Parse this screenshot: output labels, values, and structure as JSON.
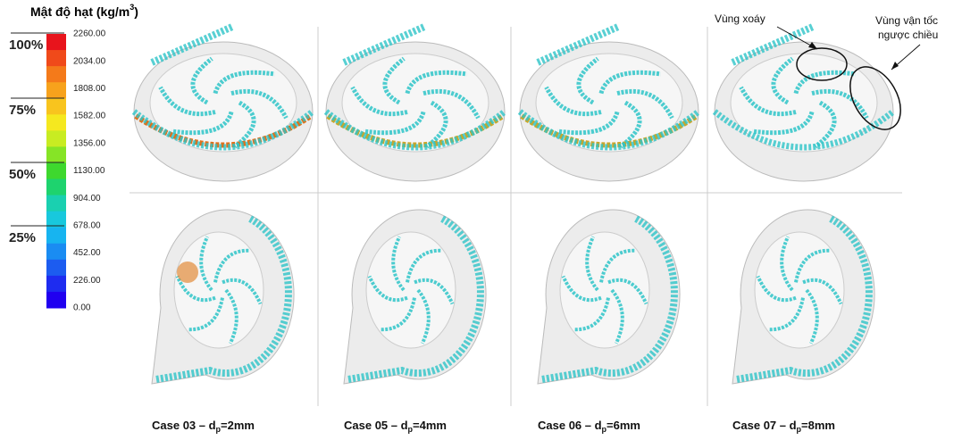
{
  "legend": {
    "title": "Mật độ hạt (kg/m",
    "title_sup": "3",
    "title_end": ")",
    "ticks": [
      "2260.00",
      "2034.00",
      "1808.00",
      "1582.00",
      "1356.00",
      "1130.00",
      "904.00",
      "678.00",
      "452.00",
      "226.00",
      "0.00"
    ],
    "percent_labels": [
      "100%",
      "75%",
      "50%",
      "25%"
    ]
  },
  "annotations": {
    "vortex": "Vùng xoáy",
    "reverse_line1": "Vùng vận tốc",
    "reverse_line2": "ngược chiều"
  },
  "captions": [
    {
      "prefix": "Case 03 – d",
      "sub": "p",
      "suffix": "=2mm"
    },
    {
      "prefix": "Case 05 – d",
      "sub": "p",
      "suffix": "=4mm"
    },
    {
      "prefix": "Case 06 – d",
      "sub": "p",
      "suffix": "=6mm"
    },
    {
      "prefix": "Case 07 – d",
      "sub": "p",
      "suffix": "=8mm"
    }
  ]
}
